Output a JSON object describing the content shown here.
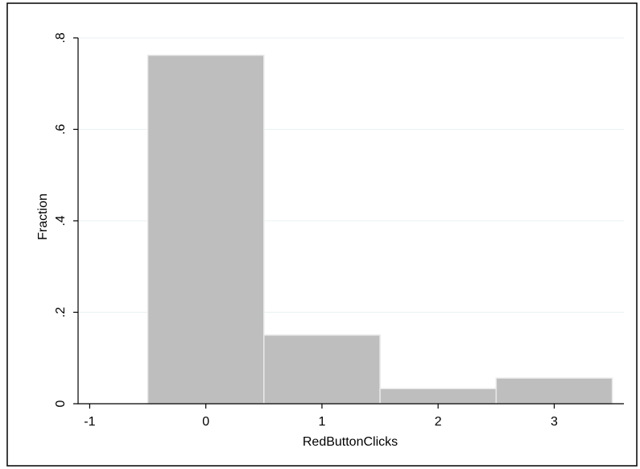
{
  "chart_data": {
    "type": "bar",
    "xlabel": "RedButtonClicks",
    "ylabel": "Fraction",
    "xlim": [
      -1.1,
      3.6
    ],
    "ylim": [
      0,
      0.8
    ],
    "x_ticks": [
      -1,
      0,
      1,
      2,
      3
    ],
    "x_tick_labels": [
      "-1",
      "0",
      "1",
      "2",
      "3"
    ],
    "y_ticks": [
      0,
      0.2,
      0.4,
      0.6,
      0.8
    ],
    "y_tick_labels": [
      "0",
      ".2",
      ".4",
      ".6",
      ".8"
    ],
    "bin_width": 1,
    "categories": [
      0,
      1,
      2,
      3
    ],
    "values": [
      0.762,
      0.15,
      0.033,
      0.056
    ],
    "grid": true,
    "colors": {
      "bar_fill": "#bebebe",
      "bar_stroke": "#e8e8e8",
      "grid": "#eaf2f3",
      "axis": "#000000",
      "frame": "#000000"
    }
  }
}
